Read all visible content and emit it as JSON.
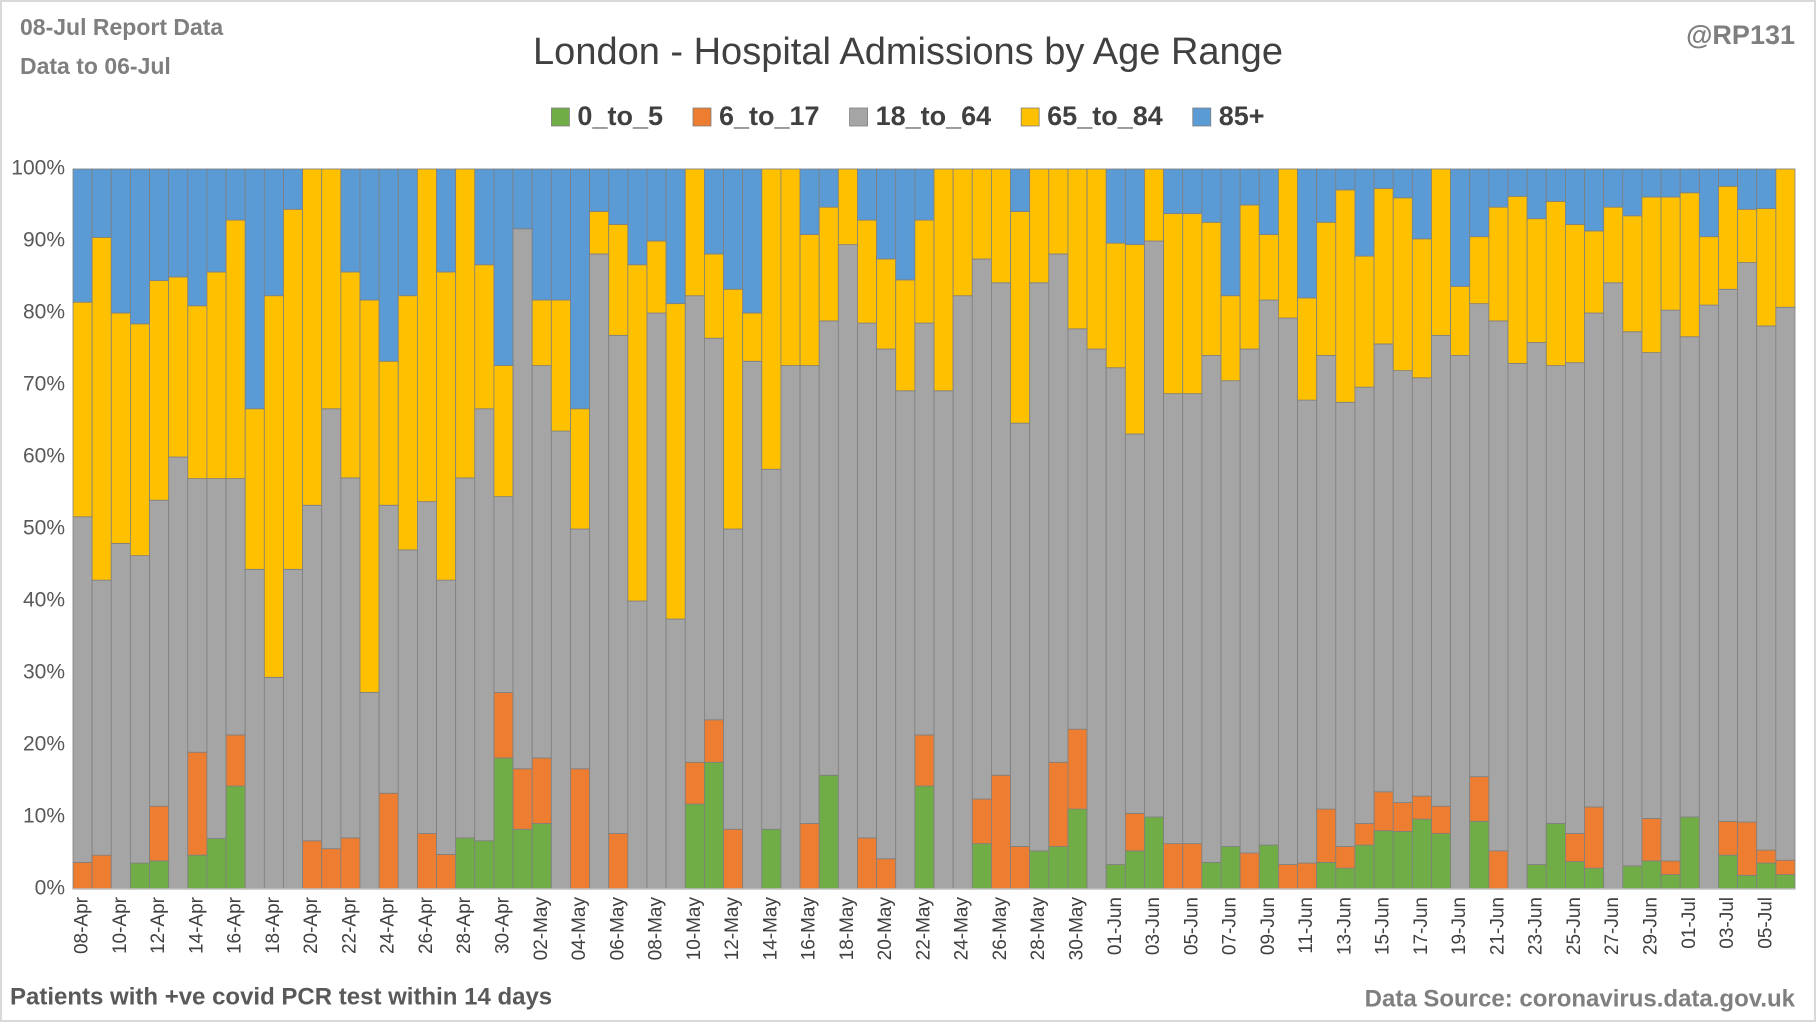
{
  "chart_data": {
    "type": "stacked_bar_percent",
    "title": "London - Hospital Admissions by Age Range",
    "annotations": [
      "08-Jul Report Data",
      "Data to 06-Jul",
      "@RP131",
      "Patients with  +ve covid PCR test within 14 days",
      "Data Source: coronavirus.data.gov.uk"
    ],
    "legend": "top",
    "grid": true,
    "ylim": [
      0,
      100
    ],
    "yticks": [
      {
        "value": 0,
        "label": "0%"
      },
      {
        "value": 10,
        "label": "10%"
      },
      {
        "value": 20,
        "label": "20%"
      },
      {
        "value": 30,
        "label": "30%"
      },
      {
        "value": 40,
        "label": "40%"
      },
      {
        "value": 50,
        "label": "50%"
      },
      {
        "value": 60,
        "label": "60%"
      },
      {
        "value": 70,
        "label": "70%"
      },
      {
        "value": 80,
        "label": "80%"
      },
      {
        "value": 90,
        "label": "90%"
      },
      {
        "value": 100,
        "label": "100%"
      }
    ],
    "categories": [
      "08-Apr",
      null,
      "10-Apr",
      null,
      "12-Apr",
      null,
      "14-Apr",
      null,
      "16-Apr",
      null,
      "18-Apr",
      null,
      "20-Apr",
      null,
      "22-Apr",
      null,
      "24-Apr",
      null,
      "26-Apr",
      null,
      "28-Apr",
      null,
      "30-Apr",
      null,
      "02-May",
      null,
      "04-May",
      null,
      "06-May",
      null,
      "08-May",
      null,
      "10-May",
      null,
      "12-May",
      null,
      "14-May",
      null,
      "16-May",
      null,
      "18-May",
      null,
      "20-May",
      null,
      "22-May",
      null,
      "24-May",
      null,
      "26-May",
      null,
      "28-May",
      null,
      "30-May",
      null,
      "01-Jun",
      null,
      "03-Jun",
      null,
      "05-Jun",
      null,
      "07-Jun",
      null,
      "09-Jun",
      null,
      "11-Jun",
      null,
      "13-Jun",
      null,
      "15-Jun",
      null,
      "17-Jun",
      null,
      "19-Jun",
      null,
      "21-Jun",
      null,
      "23-Jun",
      null,
      "25-Jun",
      null,
      "27-Jun",
      null,
      "29-Jun",
      null,
      "01-Jul",
      null,
      "03-Jul",
      null,
      "05-Jul",
      null
    ],
    "series": [
      {
        "name": "0_to_5",
        "color": "#70ad47",
        "values": [
          0,
          0,
          0,
          3.6,
          3.9,
          0,
          4.7,
          7,
          14.3,
          0,
          0,
          0,
          0,
          0,
          0,
          0,
          0,
          0,
          0,
          0,
          7.1,
          6.7,
          18.2,
          8.3,
          9.1,
          0,
          0,
          0,
          0,
          0,
          0,
          0,
          11.8,
          17.6,
          0,
          0,
          8.3,
          0,
          0,
          15.8,
          0,
          0,
          0,
          0,
          14.3,
          0,
          0,
          6.3,
          0,
          0,
          5.3,
          5.9,
          11.1,
          0,
          3.4,
          5.3,
          10,
          0,
          0,
          3.7,
          5.9,
          0,
          6.1,
          0,
          0,
          3.7,
          2.9,
          6.1,
          8.1,
          8,
          9.7,
          7.7,
          0,
          9.4,
          0,
          0,
          3.4,
          9.1,
          3.8,
          2.9,
          0,
          3.2,
          3.9,
          2,
          10,
          0,
          4.7,
          1.9,
          3.6,
          2
        ]
      },
      {
        "name": "6_to_17",
        "color": "#ed7d31",
        "values": [
          3.7,
          4.7,
          0,
          0,
          7.6,
          0,
          14.3,
          0,
          7.1,
          0,
          0,
          0,
          6.7,
          5.6,
          7.1,
          0,
          13.3,
          0,
          7.7,
          4.8,
          0,
          0,
          9.1,
          8.4,
          9.1,
          0,
          16.7,
          0,
          7.7,
          0,
          0,
          0,
          5.8,
          5.9,
          8.3,
          0,
          0,
          0,
          9.1,
          0,
          0,
          7.1,
          4.2,
          0,
          7.1,
          0,
          0,
          6.2,
          15.8,
          5.9,
          0,
          11.7,
          11.1,
          0,
          0,
          5.2,
          0,
          6.3,
          6.3,
          0,
          0,
          5,
          0,
          3.4,
          3.6,
          7.4,
          3,
          3,
          5.4,
          4,
          3.2,
          3.8,
          0,
          6.2,
          5.3,
          0,
          0,
          0,
          3.9,
          8.5,
          0,
          0,
          5.9,
          1.9,
          0,
          0,
          4.7,
          7.4,
          1.8,
          2
        ]
      },
      {
        "name": "18_to_64",
        "color": "#a5a5a5",
        "values": [
          48,
          38.2,
          48,
          42.7,
          42.5,
          60,
          38,
          50,
          35.6,
          44.4,
          29.4,
          44.4,
          46.6,
          61.1,
          50,
          27.3,
          40,
          47.1,
          46.1,
          38.1,
          50,
          60,
          27.2,
          75,
          54.5,
          63.6,
          33.3,
          88.2,
          69.2,
          40,
          80,
          37.5,
          64.8,
          53,
          41.7,
          73.3,
          50,
          72.7,
          63.6,
          63.1,
          89.5,
          71.5,
          70.8,
          69.2,
          57.2,
          69.2,
          82.4,
          75,
          68.4,
          58.8,
          78.9,
          70.6,
          55.6,
          75,
          69,
          52.7,
          80,
          62.5,
          62.5,
          70.4,
          64.7,
          70,
          75.7,
          75.9,
          64.3,
          63,
          61.7,
          60.6,
          62.2,
          60,
          58.1,
          65.4,
          74.1,
          65.7,
          73.6,
          73,
          72.5,
          63.6,
          65.4,
          68.6,
          84.2,
          74.2,
          64.7,
          76.5,
          66.7,
          81.1,
          73.9,
          77.7,
          72.8,
          76.8
        ]
      },
      {
        "name": "65_to_84",
        "color": "#ffc000",
        "values": [
          29.8,
          47.6,
          32,
          32.2,
          30.5,
          25,
          24,
          28.7,
          35.9,
          22.3,
          53,
          50,
          46.7,
          33.3,
          28.6,
          54.5,
          20,
          35.3,
          46.2,
          42.8,
          42.9,
          20,
          18.2,
          0,
          9.1,
          18.2,
          16.7,
          5.9,
          15.4,
          46.7,
          10,
          43.8,
          17.6,
          11.7,
          33.3,
          6.7,
          41.7,
          27.3,
          18.2,
          15.8,
          10.5,
          14.3,
          12.5,
          15.4,
          14.3,
          30.8,
          17.6,
          12.5,
          15.8,
          29.4,
          15.8,
          11.8,
          22.2,
          25,
          17.3,
          26.3,
          10,
          25,
          25,
          18.5,
          11.8,
          20,
          9.1,
          20.7,
          14.2,
          18.5,
          29.5,
          18.2,
          21.6,
          24,
          19.3,
          23.1,
          9.6,
          9.3,
          15.8,
          23.2,
          17.2,
          22.8,
          19.2,
          11.4,
          10.5,
          16.1,
          21.6,
          15.7,
          20,
          9.5,
          14.3,
          7.4,
          16.3,
          19.2
        ]
      },
      {
        "name": "85+",
        "color": "#5b9bd5",
        "values": [
          18.5,
          9.5,
          20,
          21.5,
          15.5,
          15,
          19,
          14.3,
          7.1,
          33.3,
          17.6,
          5.6,
          0,
          0,
          14.3,
          18.2,
          26.7,
          17.6,
          0,
          14.3,
          0,
          13.3,
          27.3,
          8.3,
          18.2,
          18.2,
          33.3,
          5.9,
          7.7,
          13.3,
          10,
          18.7,
          0,
          11.8,
          16.7,
          20,
          0,
          0,
          9.1,
          5.3,
          0,
          7.1,
          12.5,
          15.4,
          7.1,
          0,
          0,
          0,
          0,
          5.9,
          0,
          0,
          0,
          0,
          10.3,
          10.5,
          0,
          6.2,
          6.2,
          7.4,
          17.6,
          5,
          9.1,
          0,
          17.9,
          7.4,
          2.9,
          12.1,
          2.7,
          4,
          9.7,
          0,
          16.3,
          9.4,
          5.3,
          3.8,
          6.9,
          4.5,
          7.7,
          8.6,
          5.3,
          6.5,
          3.9,
          3.9,
          3.3,
          9.4,
          2.4,
          5.6,
          5.5,
          0
        ]
      }
    ]
  }
}
